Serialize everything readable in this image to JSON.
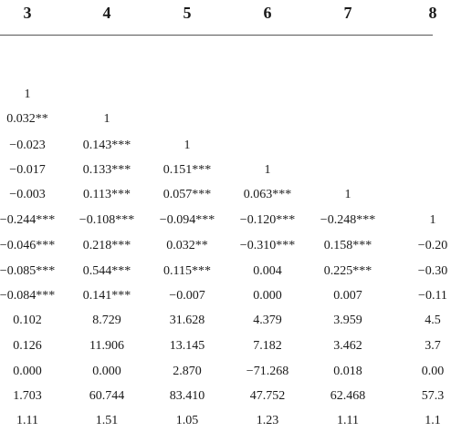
{
  "table": {
    "headers": [
      "3",
      "4",
      "5",
      "6",
      "7",
      "8"
    ],
    "rows": [
      [
        "1",
        "",
        "",
        "",
        "",
        ""
      ],
      [
        "0.032**",
        "1",
        "",
        "",
        "",
        ""
      ],
      [
        "−0.023",
        "0.143***",
        "1",
        "",
        "",
        ""
      ],
      [
        "−0.017",
        "0.133***",
        "0.151***",
        "1",
        "",
        ""
      ],
      [
        "−0.003",
        "0.113***",
        "0.057***",
        "0.063***",
        "1",
        ""
      ],
      [
        "−0.244***",
        "−0.108***",
        "−0.094***",
        "−0.120***",
        "−0.248***",
        "1"
      ],
      [
        "−0.046***",
        "0.218***",
        "0.032**",
        "−0.310***",
        "0.158***",
        "−0.20"
      ],
      [
        "−0.085***",
        "0.544***",
        "0.115***",
        "0.004",
        "0.225***",
        "−0.30"
      ],
      [
        "−0.084***",
        "0.141***",
        "−0.007",
        "0.000",
        "0.007",
        "−0.11"
      ],
      [
        "0.102",
        "8.729",
        "31.628",
        "4.379",
        "3.959",
        "4.5"
      ],
      [
        "0.126",
        "11.906",
        "13.145",
        "7.182",
        "3.462",
        "3.7"
      ],
      [
        "0.000",
        "0.000",
        "2.870",
        "−71.268",
        "0.018",
        "0.00"
      ],
      [
        "1.703",
        "60.744",
        "83.410",
        "47.752",
        "62.468",
        "57.3"
      ],
      [
        "1.11",
        "1.51",
        "1.05",
        "1.23",
        "1.11",
        "1.1"
      ]
    ]
  }
}
